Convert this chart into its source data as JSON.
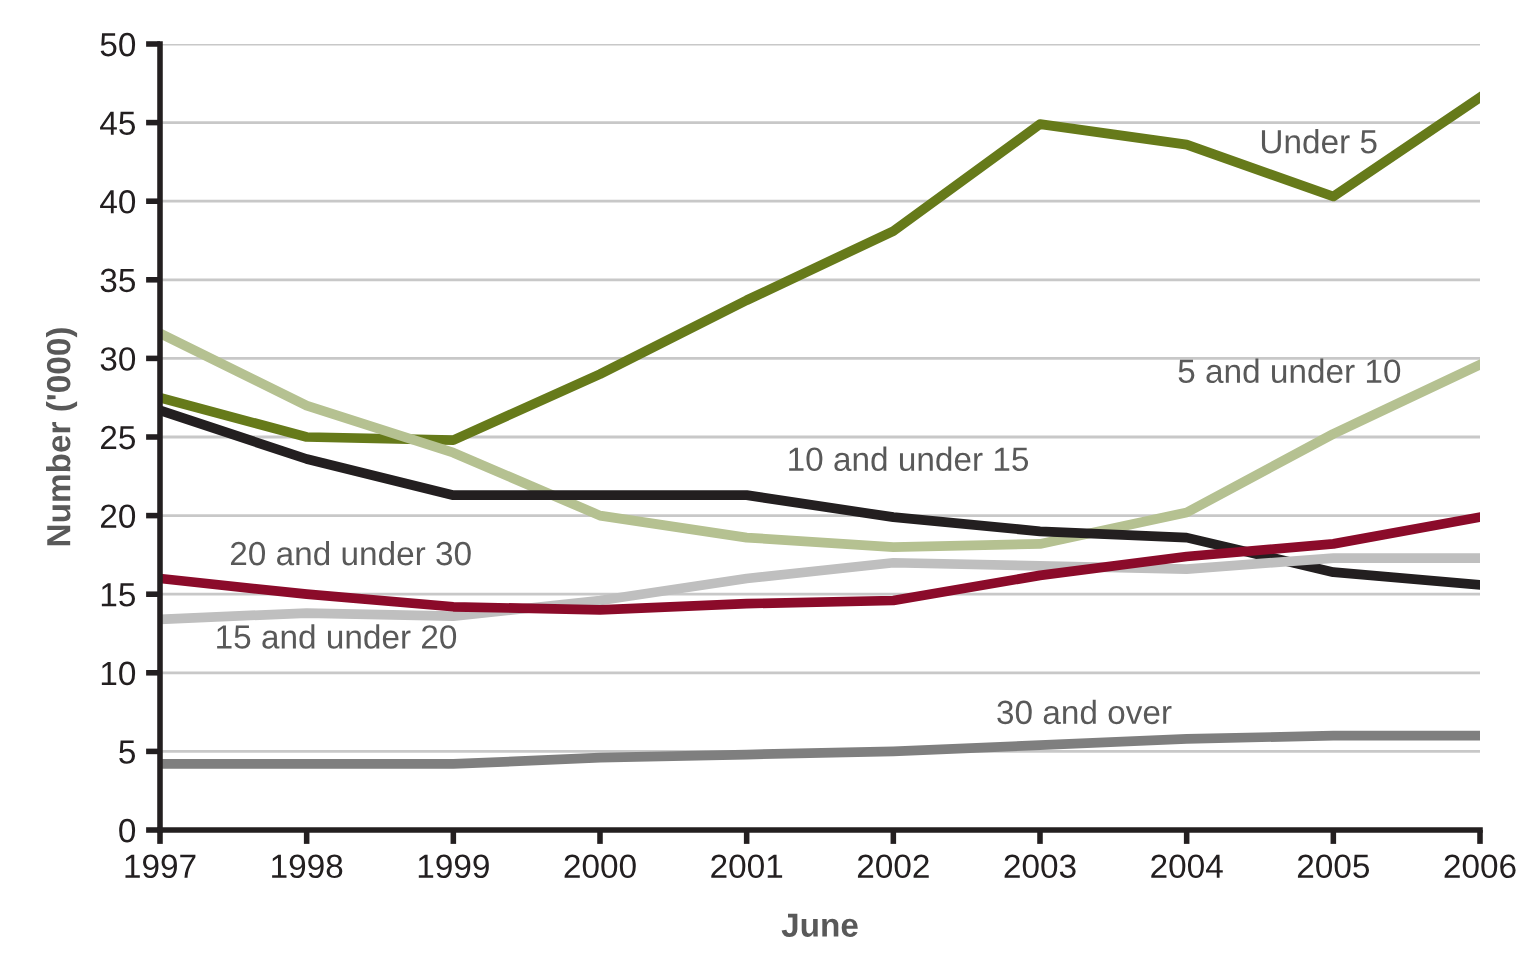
{
  "chart_data": {
    "type": "line",
    "xlabel": "June",
    "ylabel": "Number ('000)",
    "x": [
      1997,
      1998,
      1999,
      2000,
      2001,
      2002,
      2003,
      2004,
      2005,
      2006
    ],
    "series": [
      {
        "name": "Under 5",
        "color": "#667a1a",
        "values": [
          27.5,
          25,
          24.8,
          29,
          33.7,
          38.1,
          44.9,
          43.6,
          40.3,
          46.6
        ]
      },
      {
        "name": "5 and under 10",
        "color": "#b5c191",
        "values": [
          31.6,
          27,
          24,
          20,
          18.6,
          18,
          18.2,
          20.2,
          25.2,
          29.6
        ]
      },
      {
        "name": "10 and under 15",
        "color": "#231f20",
        "values": [
          26.7,
          23.6,
          21.3,
          21.3,
          21.3,
          19.9,
          19,
          18.6,
          16.4,
          15.6
        ]
      },
      {
        "name": "15 and under 20",
        "color": "#bfbfbf",
        "values": [
          13.4,
          13.8,
          13.6,
          14.6,
          16,
          17,
          16.8,
          16.6,
          17.3,
          17.3
        ]
      },
      {
        "name": "20 and under 30",
        "color": "#8b0b2a",
        "values": [
          16,
          15,
          14.2,
          14,
          14.4,
          14.6,
          16.2,
          17.4,
          18.2,
          19.9
        ]
      },
      {
        "name": "30 and over",
        "color": "#7f7f7f",
        "values": [
          4.2,
          4.2,
          4.2,
          4.6,
          4.8,
          5,
          5.4,
          5.8,
          6,
          6
        ]
      }
    ],
    "xlim": [
      1997,
      2006
    ],
    "xticks": [
      1997,
      1998,
      1999,
      2000,
      2001,
      2002,
      2003,
      2004,
      2005,
      2006
    ],
    "ylim": [
      0,
      50
    ],
    "yticks": [
      0,
      5,
      10,
      15,
      20,
      25,
      30,
      35,
      40,
      45,
      50
    ],
    "grid": "y",
    "legend": false,
    "marker": "none",
    "line_style": "solid"
  }
}
